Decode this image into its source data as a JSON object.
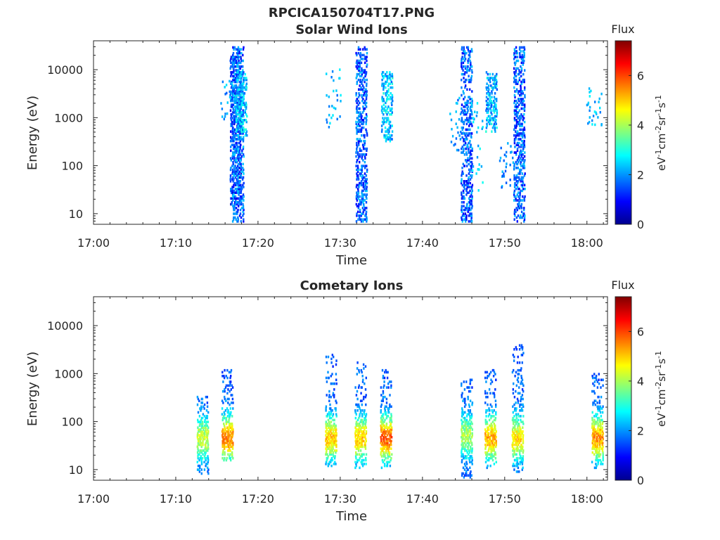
{
  "figure_title": "RPCICA150704T17.PNG",
  "chart_data": [
    {
      "type": "heatmap",
      "title": "Solar Wind Ions",
      "xlabel": "Time",
      "ylabel": "Energy (eV)",
      "x_ticks": [
        "17:00",
        "17:10",
        "17:20",
        "17:30",
        "17:40",
        "17:50",
        "18:00"
      ],
      "xlim": [
        "17:00",
        "18:02.5"
      ],
      "y_scale": "log",
      "y_ticks": [
        "10",
        "100",
        "1000",
        "10000"
      ],
      "ylim": [
        6,
        40000
      ],
      "colorbar": {
        "title": "Flux",
        "label": "eV-1cm-2sr-1s-1",
        "ticks": [
          "0",
          "2",
          "4",
          "6"
        ],
        "range": [
          0,
          7.4
        ],
        "colormap": "jet"
      },
      "bursts": [
        {
          "t": 17.2,
          "lo": 15,
          "hi": 20000,
          "level": 1.0
        },
        {
          "t": 17.5,
          "lo": 5,
          "hi": 30000,
          "level": 1.4
        },
        {
          "t": 17.9,
          "lo": 400,
          "hi": 9000,
          "level": 2.0
        },
        {
          "t": 32.5,
          "lo": 5,
          "hi": 30000,
          "level": 1.3
        },
        {
          "t": 35.6,
          "lo": 300,
          "hi": 9000,
          "level": 2.0
        },
        {
          "t": 45.3,
          "lo": 5,
          "hi": 30000,
          "level": 1.3
        },
        {
          "t": 48.3,
          "lo": 500,
          "hi": 9000,
          "level": 2.0
        },
        {
          "t": 51.7,
          "lo": 5,
          "hi": 30000,
          "level": 1.3
        }
      ],
      "scatter": [
        {
          "t": 29.1,
          "lo": 500,
          "hi": 10000,
          "level": 2.2
        },
        {
          "t": 16.3,
          "lo": 800,
          "hi": 6000,
          "level": 2.1
        },
        {
          "t": 44.0,
          "lo": 200,
          "hi": 3000,
          "level": 2.0
        },
        {
          "t": 46.4,
          "lo": 30,
          "hi": 2000,
          "level": 2.4
        },
        {
          "t": 50.2,
          "lo": 30,
          "hi": 300,
          "level": 2.0
        },
        {
          "t": 60.8,
          "lo": 600,
          "hi": 5000,
          "level": 2.3
        }
      ]
    },
    {
      "type": "heatmap",
      "title": "Cometary Ions",
      "xlabel": "Time",
      "ylabel": "Energy (eV)",
      "x_ticks": [
        "17:00",
        "17:10",
        "17:20",
        "17:30",
        "17:40",
        "17:50",
        "18:00"
      ],
      "xlim": [
        "17:00",
        "18:02.5"
      ],
      "y_scale": "log",
      "y_ticks": [
        "10",
        "100",
        "1000",
        "10000"
      ],
      "ylim": [
        6,
        40000
      ],
      "colorbar": {
        "title": "Flux",
        "label": "eV-1cm-2sr-1s-1",
        "ticks": [
          "0",
          "2",
          "4",
          "6"
        ],
        "range": [
          0,
          7.4
        ],
        "colormap": "jet"
      },
      "bursts": [
        {
          "t": 13.2,
          "lo": 8,
          "hi": 350,
          "peak": 45,
          "level": 4.2
        },
        {
          "t": 16.2,
          "lo": 15,
          "hi": 1200,
          "peak": 45,
          "level": 5.6
        },
        {
          "t": 28.8,
          "lo": 10,
          "hi": 2500,
          "peak": 45,
          "level": 5.0
        },
        {
          "t": 32.4,
          "lo": 10,
          "hi": 2000,
          "peak": 45,
          "level": 5.0
        },
        {
          "t": 35.5,
          "lo": 10,
          "hi": 1200,
          "peak": 45,
          "level": 5.8
        },
        {
          "t": 45.3,
          "lo": 6,
          "hi": 800,
          "peak": 50,
          "level": 4.0
        },
        {
          "t": 48.2,
          "lo": 10,
          "hi": 1300,
          "peak": 45,
          "level": 5.2
        },
        {
          "t": 51.5,
          "lo": 8,
          "hi": 4000,
          "peak": 45,
          "level": 4.8
        },
        {
          "t": 61.2,
          "lo": 10,
          "hi": 1000,
          "peak": 45,
          "level": 5.4
        }
      ]
    }
  ]
}
